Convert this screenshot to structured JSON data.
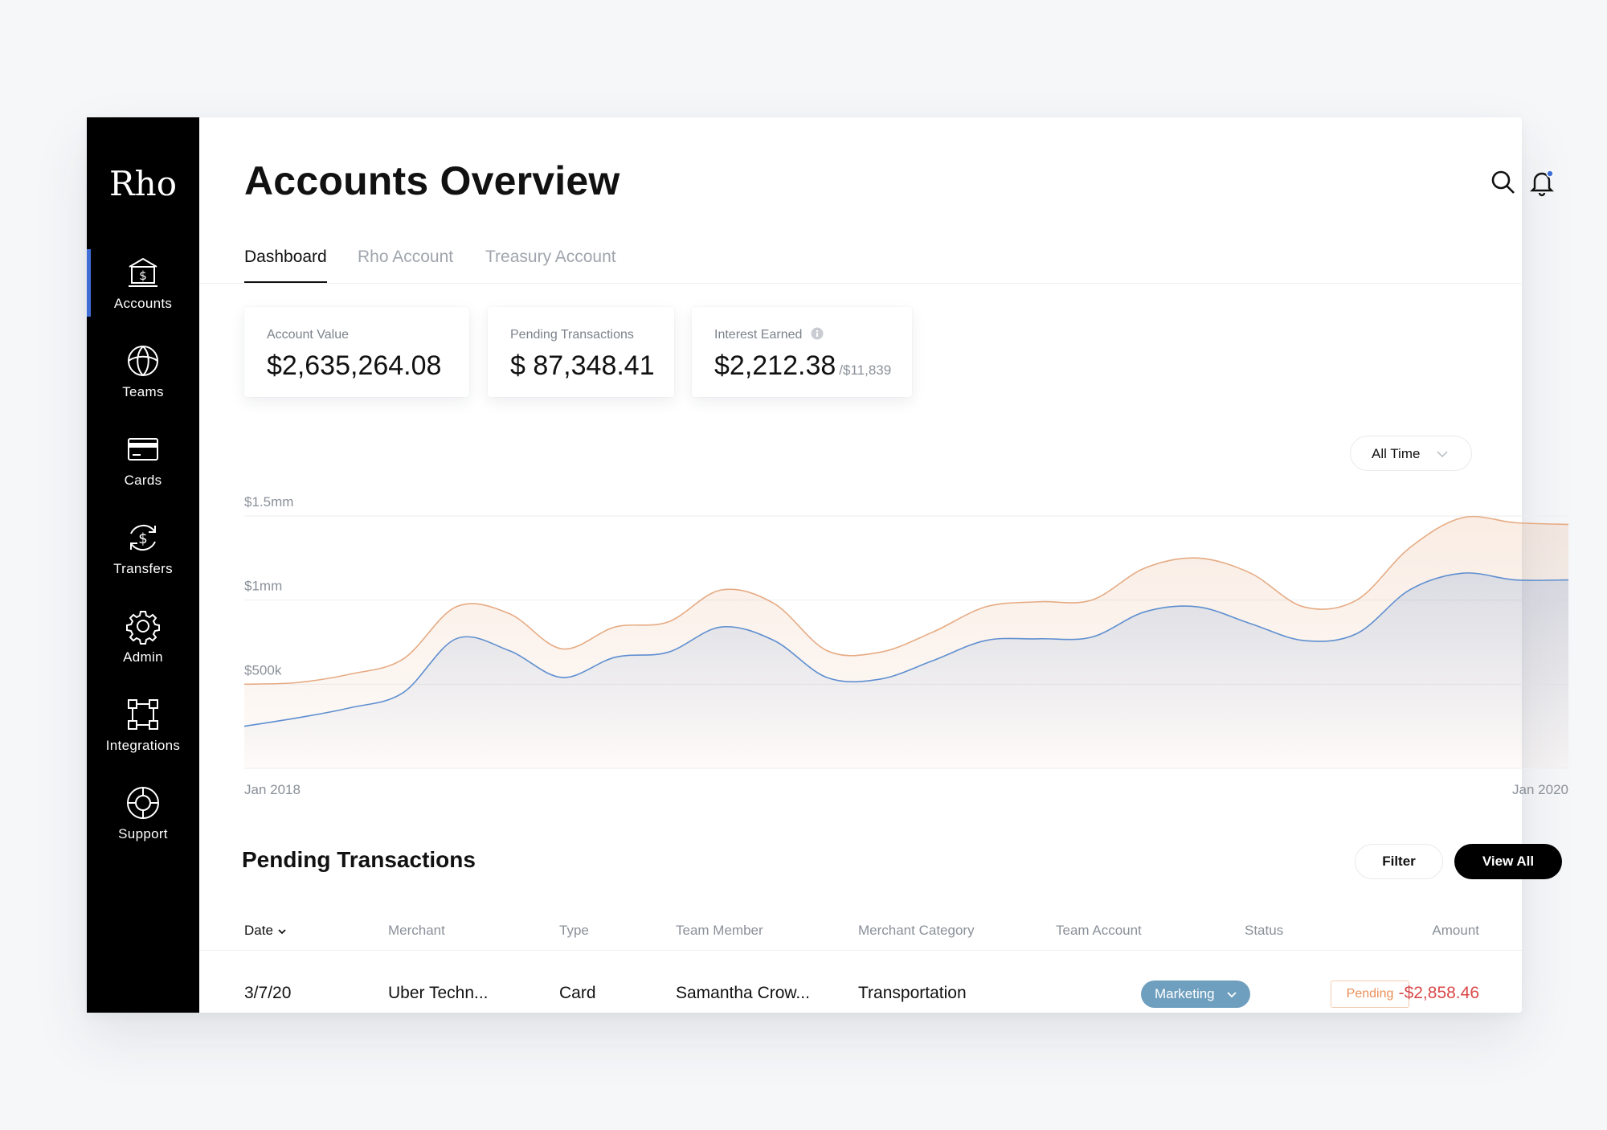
{
  "app": {
    "logo": "Rho"
  },
  "sidebar": {
    "items": [
      {
        "label": "Accounts",
        "icon": "bank-icon",
        "active": true
      },
      {
        "label": "Teams",
        "icon": "teams-icon",
        "active": false
      },
      {
        "label": "Cards",
        "icon": "card-icon",
        "active": false
      },
      {
        "label": "Transfers",
        "icon": "transfer-icon",
        "active": false
      },
      {
        "label": "Admin",
        "icon": "gear-icon",
        "active": false
      },
      {
        "label": "Integrations",
        "icon": "integrations-icon",
        "active": false
      },
      {
        "label": "Support",
        "icon": "lifebuoy-icon",
        "active": false
      }
    ]
  },
  "header": {
    "title": "Accounts Overview",
    "icons": [
      "search-icon",
      "bell-icon"
    ]
  },
  "tabs": [
    {
      "label": "Dashboard",
      "active": true
    },
    {
      "label": "Rho Account",
      "active": false
    },
    {
      "label": "Treasury Account",
      "active": false
    }
  ],
  "stats": [
    {
      "label": "Account Value",
      "value": "$2,635,264.08"
    },
    {
      "label": "Pending Transactions",
      "value": "$ 87,348.41"
    },
    {
      "label": "Interest Earned",
      "value": "$2,212.38",
      "sub": "/$11,839"
    }
  ],
  "range_select": {
    "selected": "All Time"
  },
  "chart_data": {
    "type": "area",
    "x_start_label": "Jan 2018",
    "x_end_label": "Jan 2020",
    "y_tick_labels": [
      "$1.5mm",
      "$1mm",
      "$500k"
    ],
    "y_ticks": [
      1500000,
      1000000,
      500000
    ],
    "ylim": [
      0,
      1500000
    ],
    "grid": true,
    "colors": {
      "upper": "#e6ab83",
      "lower": "#5f8fd0"
    },
    "series": [
      {
        "values": [
          500000,
          510000,
          560000,
          650000,
          960000,
          920000,
          710000,
          840000,
          870000,
          1060000,
          980000,
          700000,
          690000,
          810000,
          960000,
          990000,
          1000000,
          1190000,
          1250000,
          1160000,
          960000,
          1000000,
          1310000,
          1490000,
          1460000,
          1450000
        ]
      },
      {
        "values": [
          250000,
          300000,
          360000,
          450000,
          770000,
          700000,
          540000,
          660000,
          690000,
          840000,
          760000,
          540000,
          530000,
          640000,
          760000,
          770000,
          780000,
          930000,
          960000,
          860000,
          760000,
          800000,
          1060000,
          1160000,
          1120000,
          1120000
        ]
      }
    ]
  },
  "pending": {
    "title": "Pending Transactions",
    "filter_label": "Filter",
    "view_all_label": "View All",
    "columns": [
      "Date",
      "Merchant",
      "Type",
      "Team Member",
      "Merchant Category",
      "Team Account",
      "Status",
      "Amount"
    ],
    "rows": [
      {
        "date": "3/7/20",
        "merchant": "Uber Techn...",
        "type": "Card",
        "member": "Samantha Crow...",
        "category": "Transportation",
        "team_account": "Marketing",
        "status": "Pending",
        "amount": "-$2,858.46"
      }
    ]
  }
}
